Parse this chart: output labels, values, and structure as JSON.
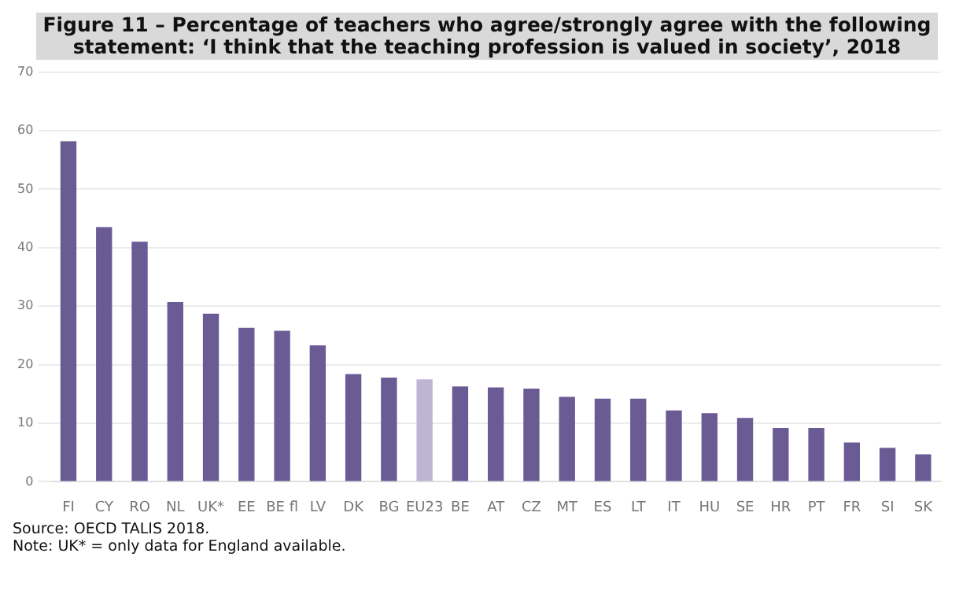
{
  "chart_data": {
    "type": "bar",
    "title": "Figure 11 – Percentage of teachers who agree/strongly agree with the following statement: ‘I think that the teaching profession is valued in society’, 2018",
    "categories": [
      "FI",
      "CY",
      "RO",
      "NL",
      "UK*",
      "EE",
      "BE fl",
      "LV",
      "DK",
      "BG",
      "EU23",
      "BE",
      "AT",
      "CZ",
      "MT",
      "ES",
      "LT",
      "IT",
      "HU",
      "SE",
      "HR",
      "PT",
      "FR",
      "SI",
      "SK"
    ],
    "values": [
      58.2,
      43.5,
      41,
      30.7,
      28.7,
      26.3,
      25.8,
      23.3,
      18.4,
      17.8,
      17.5,
      16.3,
      16.1,
      15.9,
      14.5,
      14.2,
      14.2,
      12.2,
      11.7,
      10.9,
      9.2,
      9.2,
      6.7,
      5.8,
      4.7
    ],
    "colors": [
      "#6b5b95",
      "#6b5b95",
      "#6b5b95",
      "#6b5b95",
      "#6b5b95",
      "#6b5b95",
      "#6b5b95",
      "#6b5b95",
      "#6b5b95",
      "#6b5b95",
      "#bdb5d3",
      "#6b5b95",
      "#6b5b95",
      "#6b5b95",
      "#6b5b95",
      "#6b5b95",
      "#6b5b95",
      "#6b5b95",
      "#6b5b95",
      "#6b5b95",
      "#6b5b95",
      "#6b5b95",
      "#6b5b95",
      "#6b5b95",
      "#6b5b95"
    ],
    "ylim": [
      0,
      70
    ],
    "yticks": [
      0,
      10,
      20,
      30,
      40,
      50,
      60,
      70
    ],
    "grid": "y",
    "legend": false,
    "annotations": [
      "Source: OECD TALIS 2018.",
      "Note: UK* = only data for England available."
    ]
  }
}
